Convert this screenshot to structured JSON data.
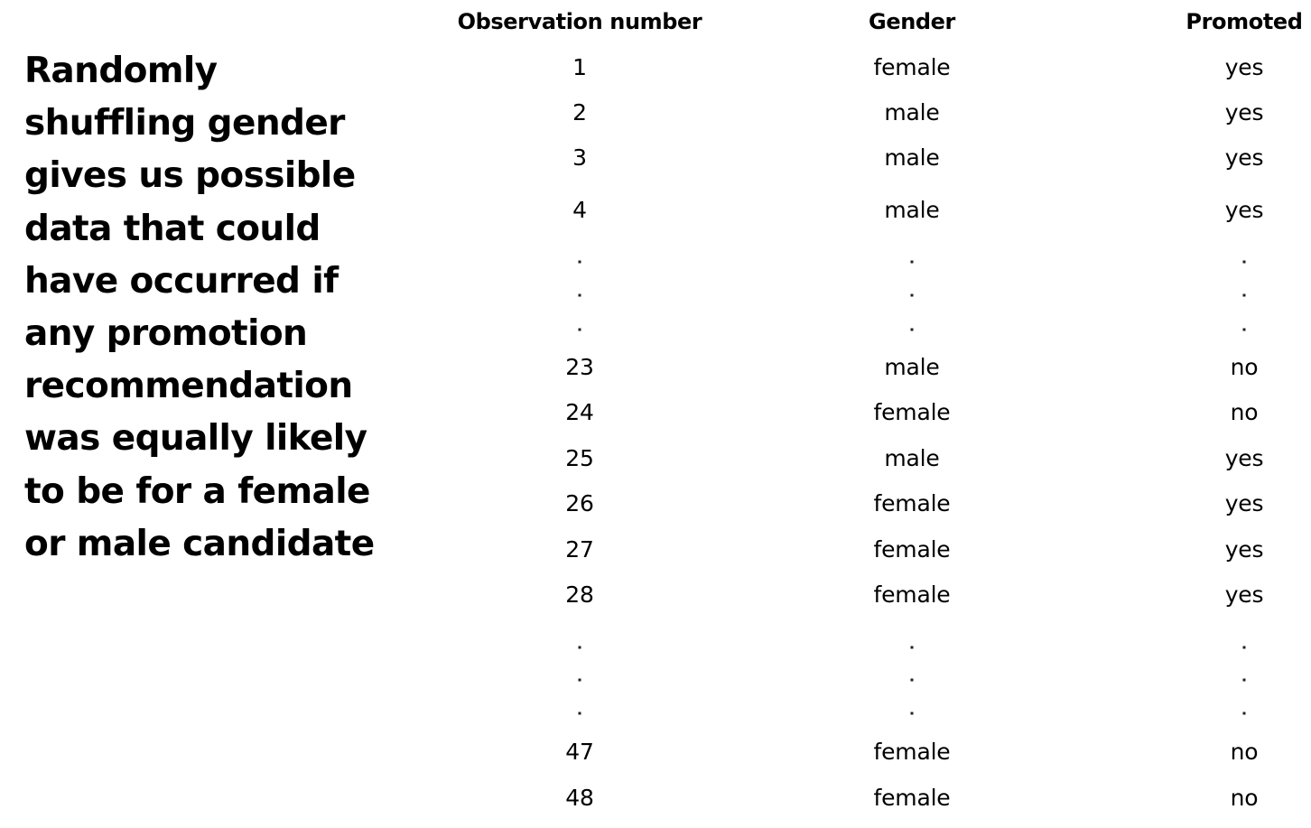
{
  "caption": {
    "lines": [
      "Randomly",
      "shuffling gender",
      "gives us possible",
      "data that could",
      "have occurred if",
      "any promotion",
      "recommendation",
      "was equally likely",
      "to be for a female",
      "or male candidate"
    ]
  },
  "table": {
    "headers": [
      "Observation number",
      "Gender",
      "Promoted"
    ],
    "rows": [
      {
        "observation": "1",
        "gender": "female",
        "promoted": "yes"
      },
      {
        "observation": "2",
        "gender": "male",
        "promoted": "yes"
      },
      {
        "observation": "3",
        "gender": "male",
        "promoted": "yes"
      },
      {
        "observation": "4",
        "gender": "male",
        "promoted": "yes"
      },
      {
        "observation": ".",
        "gender": ".",
        "promoted": "."
      },
      {
        "observation": ".",
        "gender": ".",
        "promoted": "."
      },
      {
        "observation": ".",
        "gender": ".",
        "promoted": "."
      },
      {
        "observation": "23",
        "gender": "male",
        "promoted": "no"
      },
      {
        "observation": "24",
        "gender": "female",
        "promoted": "no"
      },
      {
        "observation": "25",
        "gender": "male",
        "promoted": "yes"
      },
      {
        "observation": "26",
        "gender": "female",
        "promoted": "yes"
      },
      {
        "observation": "27",
        "gender": "female",
        "promoted": "yes"
      },
      {
        "observation": "28",
        "gender": "female",
        "promoted": "yes"
      },
      {
        "observation": ".",
        "gender": ".",
        "promoted": "."
      },
      {
        "observation": ".",
        "gender": ".",
        "promoted": "."
      },
      {
        "observation": ".",
        "gender": ".",
        "promoted": "."
      },
      {
        "observation": "47",
        "gender": "female",
        "promoted": "no"
      },
      {
        "observation": "48",
        "gender": "female",
        "promoted": "no"
      }
    ]
  }
}
